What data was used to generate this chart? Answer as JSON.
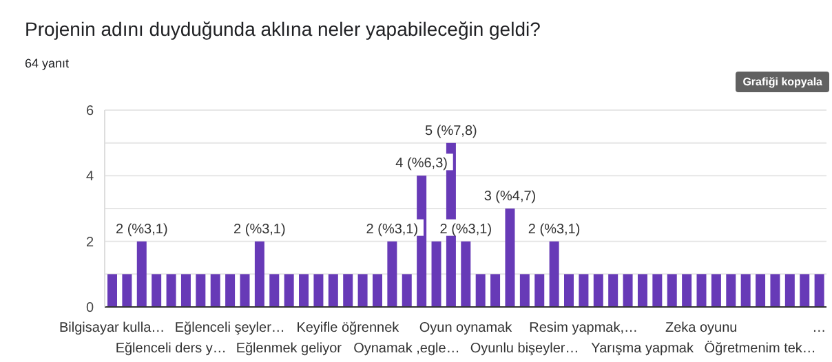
{
  "chart_data": {
    "type": "bar",
    "title": "Projenin adını duyduğunda aklına neler yapabileceğin geldi?",
    "subtitle": "64 yanıt",
    "annotations": [
      "Grafiği kopyala"
    ],
    "categories": [
      "Bilgisayar kulla…",
      null,
      null,
      null,
      "Eğlenceli ders y…",
      null,
      null,
      null,
      "Eğlenceli şeyler…",
      null,
      null,
      null,
      "Eğlenmek geliyor",
      null,
      null,
      null,
      "Keyifle öğrennek",
      null,
      null,
      null,
      "Oynamak ,egle…",
      null,
      null,
      null,
      "Oyun oynamak",
      null,
      null,
      null,
      "Oyunlu bişeyler…",
      null,
      null,
      null,
      "Resim yapmak,…",
      null,
      null,
      null,
      "Yarışma yapmak",
      null,
      null,
      null,
      "Zeka oyunu",
      null,
      null,
      null,
      "Öğretmenim tek…",
      null,
      null,
      null,
      "…"
    ],
    "values": [
      1,
      1,
      2,
      1,
      1,
      1,
      1,
      1,
      1,
      1,
      2,
      1,
      1,
      1,
      1,
      1,
      1,
      1,
      1,
      2,
      1,
      4,
      2,
      5,
      2,
      1,
      1,
      3,
      1,
      1,
      2,
      1,
      1,
      1,
      1,
      1,
      1,
      1,
      1,
      1,
      1,
      1,
      1,
      1,
      1,
      1,
      1,
      1,
      1
    ],
    "value_labels": [
      null,
      null,
      "2 (%3,1)",
      null,
      null,
      null,
      null,
      null,
      null,
      null,
      "2 (%3,1)",
      null,
      null,
      null,
      null,
      null,
      null,
      null,
      null,
      "2 (%3,1)",
      null,
      "4 (%6,3)",
      null,
      "5 (%7,8)",
      "2 (%3,1)",
      null,
      null,
      "3 (%4,7)",
      null,
      null,
      "2 (%3,1)",
      null,
      null,
      null,
      null,
      null,
      null,
      null,
      null,
      null,
      null,
      null,
      null,
      null,
      null,
      null,
      null,
      null,
      null
    ],
    "color": "#673ab7",
    "ylim": [
      0,
      6
    ],
    "yticks": [
      0,
      {
        "value": 1,
        "label": null
      },
      2,
      {
        "value": 3,
        "label": null
      },
      4,
      {
        "value": 5,
        "label": null
      },
      6
    ],
    "grid": "y",
    "legend": false
  }
}
